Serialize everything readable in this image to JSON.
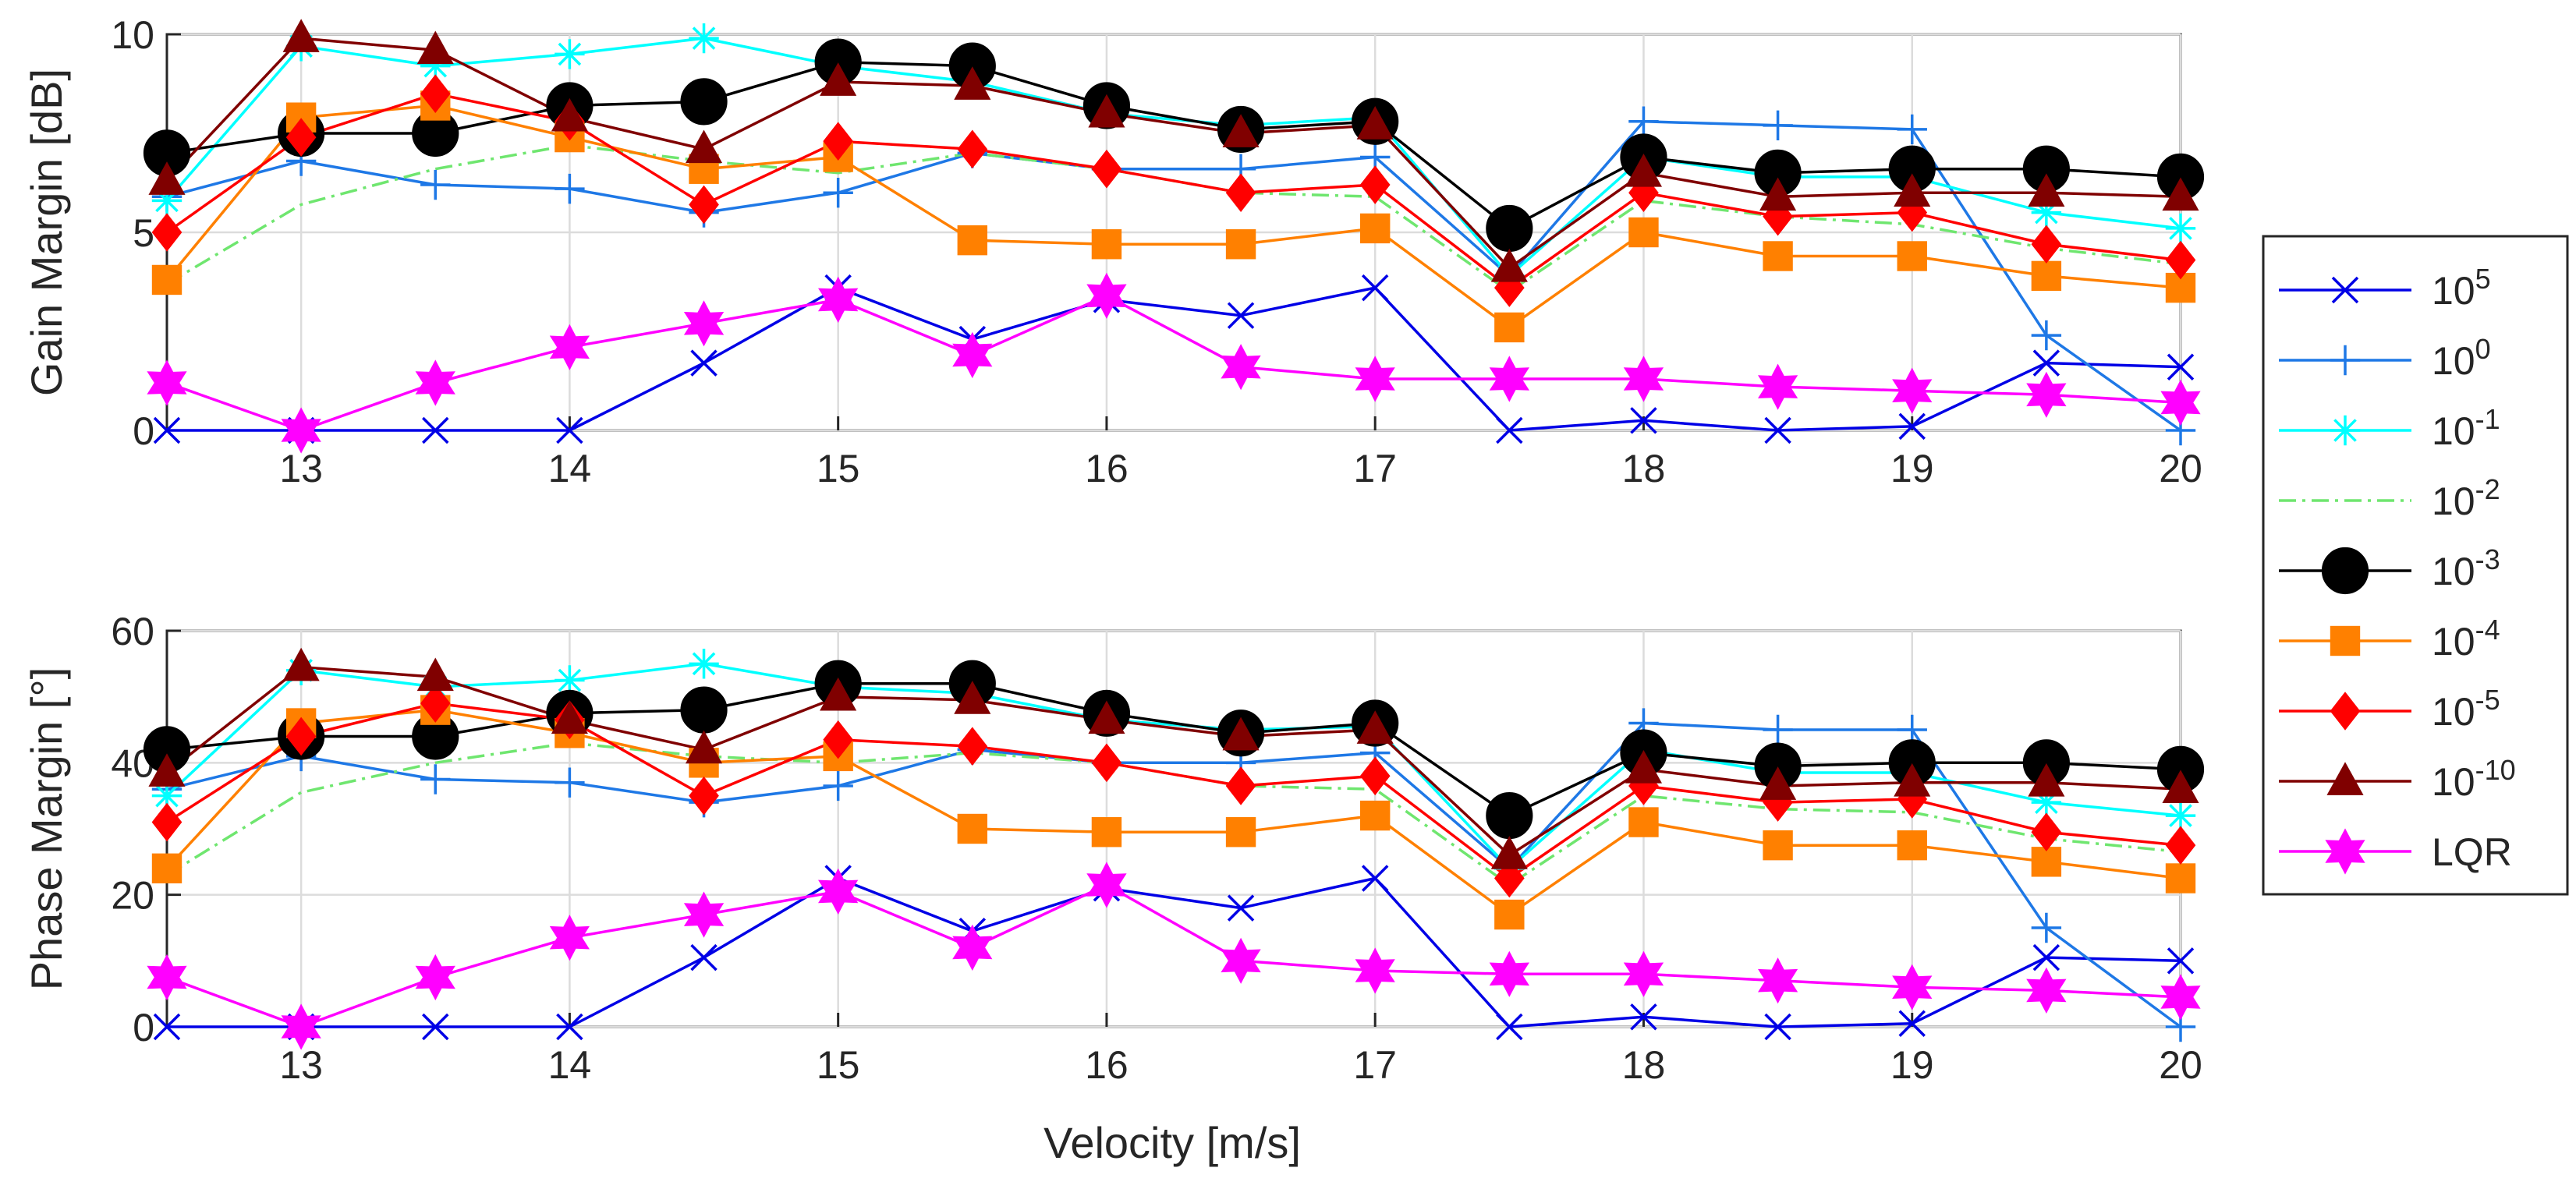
{
  "chart_data": {
    "type": "line",
    "x": [
      12.5,
      13,
      13.5,
      14,
      14.5,
      15,
      15.5,
      16,
      16.5,
      17,
      17.5,
      18,
      18.5,
      19,
      19.5,
      20
    ],
    "xlabel": "Velocity [m/s]",
    "xlim": [
      12.5,
      20
    ],
    "xticks": [
      13,
      14,
      15,
      16,
      17,
      18,
      19,
      20
    ],
    "xtick_labels": [
      "13",
      "14",
      "15",
      "16",
      "17",
      "18",
      "19",
      "20"
    ],
    "grid": true,
    "legend_position": "right",
    "legend": [
      {
        "key": "s5",
        "base": "10",
        "exp": "5"
      },
      {
        "key": "s0",
        "base": "10",
        "exp": "0"
      },
      {
        "key": "sm1",
        "base": "10",
        "exp": "-1"
      },
      {
        "key": "sm2",
        "base": "10",
        "exp": "-2"
      },
      {
        "key": "sm3",
        "base": "10",
        "exp": "-3"
      },
      {
        "key": "sm4",
        "base": "10",
        "exp": "-4"
      },
      {
        "key": "sm5",
        "base": "10",
        "exp": "-5"
      },
      {
        "key": "sm10",
        "base": "10",
        "exp": "-10"
      },
      {
        "key": "lqr",
        "text": "LQR"
      }
    ],
    "styles": {
      "s5": {
        "color": "#0000e6",
        "marker": "x",
        "dash": "solid"
      },
      "s0": {
        "color": "#1e78e6",
        "marker": "plus",
        "dash": "solid"
      },
      "sm1": {
        "color": "#00ffff",
        "marker": "asterisk",
        "dash": "solid"
      },
      "sm2": {
        "color": "#6fe66f",
        "marker": "none",
        "dash": "dashdot"
      },
      "sm3": {
        "color": "#000000",
        "marker": "circle",
        "dash": "solid"
      },
      "sm4": {
        "color": "#ff8000",
        "marker": "square",
        "dash": "solid"
      },
      "sm5": {
        "color": "#ff0000",
        "marker": "diamond",
        "dash": "solid"
      },
      "sm10": {
        "color": "#800000",
        "marker": "triangle",
        "dash": "solid"
      },
      "lqr": {
        "color": "#ff00ff",
        "marker": "hexagram",
        "dash": "solid"
      }
    },
    "panels": [
      {
        "ylabel": "Gain Margin [dB]",
        "ylim": [
          0,
          10
        ],
        "yticks": [
          0,
          5,
          10
        ],
        "ytick_labels": [
          "0",
          "5",
          "10"
        ],
        "series": {
          "s5": [
            0,
            0,
            0,
            0,
            1.7,
            3.6,
            2.3,
            3.3,
            2.9,
            3.6,
            0,
            0.25,
            0,
            0.1,
            1.7,
            1.6
          ],
          "s0": [
            5.9,
            6.8,
            6.2,
            6.1,
            5.5,
            6.0,
            7.0,
            6.6,
            6.6,
            6.9,
            3.9,
            7.8,
            7.7,
            7.6,
            2.4,
            0
          ],
          "sm1": [
            5.8,
            9.7,
            9.2,
            9.5,
            9.9,
            9.2,
            8.8,
            8.0,
            7.7,
            7.9,
            3.9,
            6.9,
            6.4,
            6.4,
            5.5,
            5.1
          ],
          "sm2": [
            3.7,
            5.7,
            6.6,
            7.2,
            6.8,
            6.5,
            7.0,
            6.6,
            6.0,
            5.9,
            3.5,
            5.8,
            5.4,
            5.2,
            4.6,
            4.2
          ],
          "sm3": [
            7.0,
            7.5,
            7.5,
            8.2,
            8.3,
            9.3,
            9.2,
            8.2,
            7.6,
            7.8,
            5.1,
            6.9,
            6.5,
            6.6,
            6.6,
            6.4
          ],
          "sm4": [
            3.8,
            7.9,
            8.2,
            7.4,
            6.6,
            6.9,
            4.8,
            4.7,
            4.7,
            5.1,
            2.6,
            5.0,
            4.4,
            4.4,
            3.9,
            3.6
          ],
          "sm5": [
            5.0,
            7.4,
            8.5,
            7.8,
            5.7,
            7.3,
            7.1,
            6.6,
            6.0,
            6.2,
            3.6,
            6.0,
            5.4,
            5.5,
            4.7,
            4.3
          ],
          "sm10": [
            6.3,
            9.9,
            9.6,
            7.9,
            7.1,
            8.8,
            8.7,
            8.0,
            7.5,
            7.7,
            4.1,
            6.5,
            5.9,
            6.0,
            6.0,
            5.9
          ],
          "lqr": [
            1.2,
            0,
            1.2,
            2.1,
            2.7,
            3.3,
            1.9,
            3.4,
            1.6,
            1.3,
            1.3,
            1.3,
            1.1,
            1.0,
            0.9,
            0.7
          ]
        }
      },
      {
        "ylabel": "Phase Margin [°]",
        "ylim": [
          0,
          60
        ],
        "yticks": [
          0,
          20,
          40,
          60
        ],
        "ytick_labels": [
          "0",
          "20",
          "40",
          "60"
        ],
        "series": {
          "s5": [
            0,
            0,
            0,
            0,
            10.5,
            22.5,
            14.5,
            21,
            18,
            22.5,
            0,
            1.5,
            0,
            0.5,
            10.5,
            10
          ],
          "s0": [
            36,
            41,
            37.5,
            37,
            34,
            36.5,
            42,
            40,
            40,
            41.5,
            24,
            46,
            45,
            45,
            15,
            0
          ],
          "sm1": [
            35,
            54,
            51.5,
            52.5,
            55,
            51.5,
            50.5,
            46.5,
            45,
            45.5,
            24,
            42,
            38.5,
            38.5,
            34,
            32
          ],
          "sm2": [
            23,
            35.5,
            40,
            43,
            41,
            40,
            41.5,
            40,
            36.5,
            36,
            21.5,
            35,
            33,
            32.5,
            28.5,
            26.5
          ],
          "sm3": [
            42,
            44,
            44,
            47.5,
            48,
            52,
            52,
            47.5,
            44.5,
            46,
            32,
            41.5,
            39.5,
            40,
            40,
            39
          ],
          "sm4": [
            24,
            46,
            48,
            44.5,
            40,
            41,
            30,
            29.5,
            29.5,
            32,
            17,
            31,
            27.5,
            27.5,
            25,
            22.5
          ],
          "sm5": [
            31,
            44,
            49,
            46.5,
            35,
            43.5,
            42.5,
            40,
            36.5,
            38,
            22.5,
            36.5,
            34,
            34.5,
            29.5,
            27.5
          ],
          "sm10": [
            38.5,
            54.5,
            53,
            46.5,
            42,
            50,
            49.5,
            46.5,
            44,
            45,
            26,
            39,
            36.5,
            37,
            37,
            36
          ],
          "lqr": [
            7.5,
            0,
            7.5,
            13.5,
            17,
            20.5,
            12,
            21.5,
            10,
            8.5,
            8,
            8,
            7,
            6,
            5.5,
            4.5
          ]
        }
      }
    ]
  }
}
